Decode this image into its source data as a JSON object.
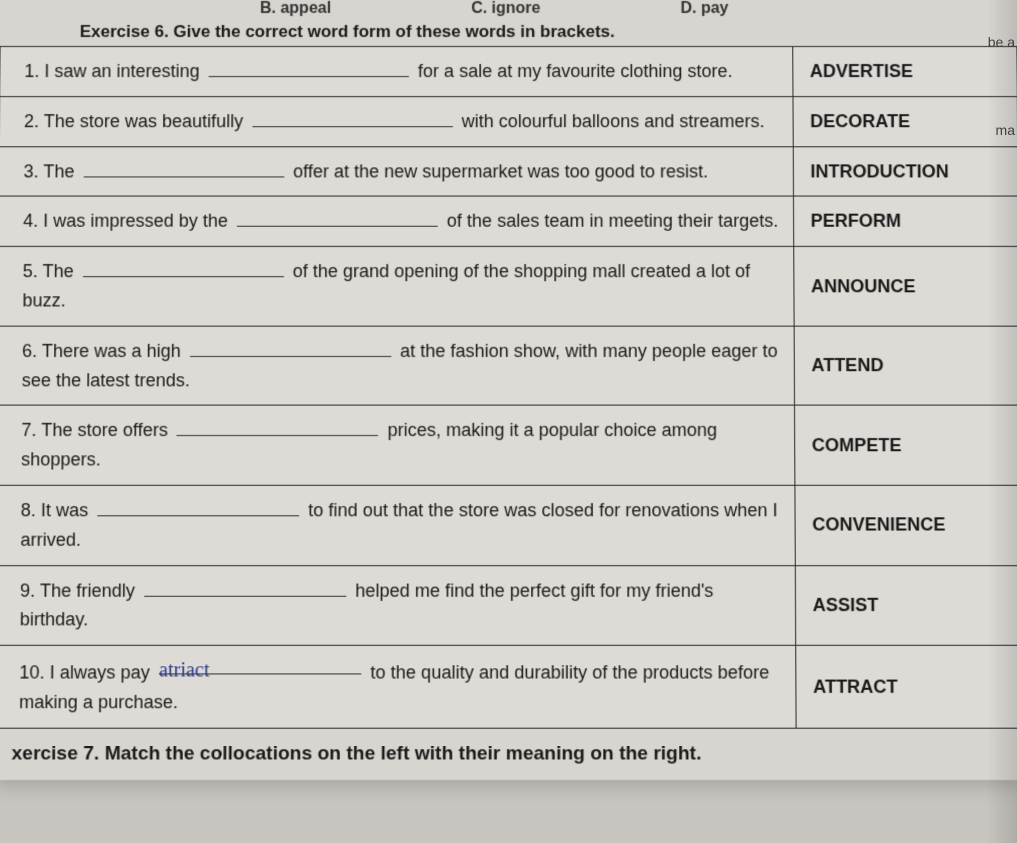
{
  "topOptions": {
    "b": "B. appeal",
    "c": "C. ignore",
    "d": "D. pay"
  },
  "exercise6": {
    "title": "Exercise 6. Give the correct word form of these words in brackets.",
    "rows": [
      {
        "q_pre": "1. I saw an interesting ",
        "q_post": " for a sale at my favourite clothing store.",
        "word": "ADVERTISE",
        "fill": ""
      },
      {
        "q_pre": "2. The store was beautifully ",
        "q_post": " with colourful balloons and streamers.",
        "word": "DECORATE",
        "fill": ""
      },
      {
        "q_pre": "3. The ",
        "q_post": " offer at the new supermarket was too good to resist.",
        "word": "INTRODUCTION",
        "fill": ""
      },
      {
        "q_pre": "4. I was impressed by the ",
        "q_post": " of the sales team in meeting their targets.",
        "word": "PERFORM",
        "fill": ""
      },
      {
        "q_pre": "5. The ",
        "q_post": " of the grand opening of the shopping mall created a lot of buzz.",
        "word": "ANNOUNCE",
        "fill": ""
      },
      {
        "q_pre": "6. There was a high ",
        "q_post": " at the fashion show, with many people eager to see the latest trends.",
        "word": "ATTEND",
        "fill": ""
      },
      {
        "q_pre": "7. The store offers ",
        "q_post": " prices, making it a popular choice among shoppers.",
        "word": "COMPETE",
        "fill": ""
      },
      {
        "q_pre": "8. It was ",
        "q_post": " to find out that the store was closed for renovations when I arrived.",
        "word": "CONVENIENCE",
        "fill": ""
      },
      {
        "q_pre": "9. The friendly ",
        "q_post": " helped me find the perfect gift for my friend's birthday.",
        "word": "ASSIST",
        "fill": ""
      },
      {
        "q_pre": "10. I always pay ",
        "q_post": " to the quality and durability of the products before making a purchase.",
        "word": "ATTRACT",
        "fill": "atriact"
      }
    ]
  },
  "exercise7": {
    "title": "xercise 7. Match the collocations on the left with their meaning on the right."
  },
  "marginText": {
    "r1": "be a",
    "r2": "ma"
  }
}
